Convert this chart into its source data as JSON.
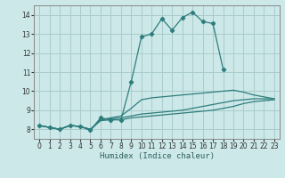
{
  "xlabel": "Humidex (Indice chaleur)",
  "xlim": [
    -0.5,
    23.5
  ],
  "ylim": [
    7.5,
    14.5
  ],
  "yticks": [
    8,
    9,
    10,
    11,
    12,
    13,
    14
  ],
  "xticks": [
    0,
    1,
    2,
    3,
    4,
    5,
    6,
    7,
    8,
    9,
    10,
    11,
    12,
    13,
    14,
    15,
    16,
    17,
    18,
    19,
    20,
    21,
    22,
    23
  ],
  "bg_color": "#cce8e8",
  "grid_color": "#aacccc",
  "line_color": "#2e7d7d",
  "line1": {
    "x": [
      0,
      1,
      2,
      3,
      4,
      5,
      6,
      7,
      8,
      9,
      10,
      11,
      12,
      13,
      14,
      15,
      16,
      17,
      18
    ],
    "y": [
      8.2,
      8.1,
      8.0,
      8.2,
      8.15,
      7.95,
      8.6,
      8.5,
      8.5,
      10.5,
      12.85,
      13.0,
      13.8,
      13.2,
      13.85,
      14.15,
      13.65,
      13.55,
      11.15
    ]
  },
  "line2": {
    "x": [
      0,
      1,
      2,
      3,
      4,
      5,
      6,
      7,
      8,
      9,
      10,
      11,
      12,
      13,
      14,
      15,
      16,
      17,
      18,
      19,
      20,
      21,
      22,
      23
    ],
    "y": [
      8.2,
      8.1,
      8.0,
      8.2,
      8.15,
      7.95,
      8.5,
      8.6,
      8.7,
      9.1,
      9.55,
      9.65,
      9.7,
      9.75,
      9.8,
      9.85,
      9.9,
      9.95,
      10.0,
      10.05,
      9.95,
      9.8,
      9.7,
      9.6
    ]
  },
  "line3": {
    "x": [
      0,
      1,
      2,
      3,
      4,
      5,
      6,
      7,
      8,
      9,
      10,
      11,
      12,
      13,
      14,
      15,
      16,
      17,
      18,
      19,
      20,
      21,
      22,
      23
    ],
    "y": [
      8.2,
      8.1,
      8.0,
      8.2,
      8.15,
      8.0,
      8.5,
      8.55,
      8.6,
      8.7,
      8.8,
      8.85,
      8.9,
      8.95,
      9.0,
      9.1,
      9.2,
      9.3,
      9.4,
      9.5,
      9.55,
      9.6,
      9.6,
      9.6
    ]
  },
  "line4": {
    "x": [
      0,
      1,
      2,
      3,
      4,
      5,
      6,
      7,
      8,
      9,
      10,
      11,
      12,
      13,
      14,
      15,
      16,
      17,
      18,
      19,
      20,
      21,
      22,
      23
    ],
    "y": [
      8.2,
      8.1,
      8.0,
      8.2,
      8.15,
      8.0,
      8.45,
      8.5,
      8.5,
      8.6,
      8.65,
      8.7,
      8.75,
      8.8,
      8.85,
      8.9,
      8.95,
      9.0,
      9.1,
      9.2,
      9.35,
      9.45,
      9.5,
      9.55
    ]
  }
}
